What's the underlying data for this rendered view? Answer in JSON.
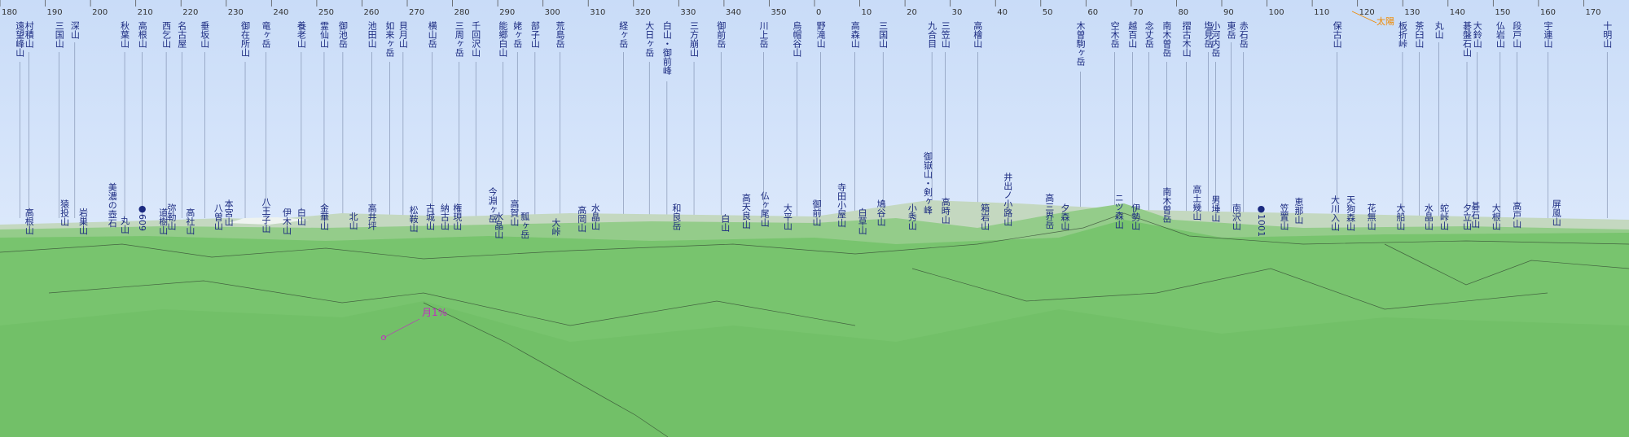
{
  "compass_ticks": [
    180,
    190,
    200,
    210,
    220,
    230,
    240,
    250,
    260,
    270,
    280,
    290,
    300,
    310,
    320,
    330,
    340,
    350,
    0,
    10,
    20,
    30,
    40,
    50,
    60,
    70,
    80,
    90,
    100,
    110,
    120,
    130,
    140,
    150,
    160,
    170
  ],
  "sun": "太陽",
  "moon": "月1%",
  "peaks": [
    {
      "name": "遠望峰山"
    },
    {
      "name": "村積山"
    },
    {
      "name": "三国山"
    },
    {
      "name": "深山"
    },
    {
      "name": "秋葉山"
    },
    {
      "name": "高根山"
    },
    {
      "name": "西乞山"
    },
    {
      "name": "名古屋"
    },
    {
      "name": "垂坂山"
    },
    {
      "name": "御在所山"
    },
    {
      "name": "竜ヶ岳"
    },
    {
      "name": "養老山"
    },
    {
      "name": "霊仙山"
    },
    {
      "name": "御池岳"
    },
    {
      "name": "池田山"
    },
    {
      "name": "如来ヶ岳"
    },
    {
      "name": "貝月山"
    },
    {
      "name": "横山岳"
    },
    {
      "name": "三周ヶ岳"
    },
    {
      "name": "千回沢山"
    },
    {
      "name": "能郷白山"
    },
    {
      "name": "姥ヶ岳"
    },
    {
      "name": "部子山"
    },
    {
      "name": "荒島岳"
    },
    {
      "name": "経ヶ岳"
    },
    {
      "name": "大日ヶ岳"
    },
    {
      "name": "白山・御前峰"
    },
    {
      "name": "三方崩山"
    },
    {
      "name": "御前岳"
    },
    {
      "name": "川上岳"
    },
    {
      "name": "烏帽谷山"
    },
    {
      "name": "野滝山"
    },
    {
      "name": "高森山"
    },
    {
      "name": "三国山"
    },
    {
      "name": "九合目"
    },
    {
      "name": "三笠山"
    },
    {
      "name": "高檜山"
    },
    {
      "name": "木曽駒ヶ岳"
    },
    {
      "name": "空木岳"
    },
    {
      "name": "越百山"
    },
    {
      "name": "念丈岳"
    },
    {
      "name": "南木曽岳"
    },
    {
      "name": "摺古木山"
    },
    {
      "name": "塩見岳"
    },
    {
      "name": "小河内岳"
    },
    {
      "name": "東岳"
    },
    {
      "name": "赤石岳"
    },
    {
      "name": "保古山"
    },
    {
      "name": "板折峠"
    },
    {
      "name": "茶臼山"
    },
    {
      "name": "丸山"
    },
    {
      "name": "碁盤石山"
    },
    {
      "name": "大鈴山"
    },
    {
      "name": "仏岩山"
    },
    {
      "name": "段戸山"
    },
    {
      "name": "宇連山"
    },
    {
      "name": "十明山"
    }
  ],
  "lower_peaks": [
    {
      "name": "高根山"
    },
    {
      "name": "猿投山"
    },
    {
      "name": "岩巣山"
    },
    {
      "name": "美濃の壺石"
    },
    {
      "name": "丸山"
    },
    {
      "name": "●609",
      "color": "#d0103a"
    },
    {
      "name": "道樹山"
    },
    {
      "name": "弥勒山"
    },
    {
      "name": "高社山"
    },
    {
      "name": "八曽山"
    },
    {
      "name": "本宮山"
    },
    {
      "name": "八王子山"
    },
    {
      "name": "伊木山"
    },
    {
      "name": "白山"
    },
    {
      "name": "金華山"
    },
    {
      "name": "北山"
    },
    {
      "name": "高井坪"
    },
    {
      "name": "松鞍山"
    },
    {
      "name": "古城山"
    },
    {
      "name": "納古山"
    },
    {
      "name": "権現山"
    },
    {
      "name": "今淵ヶ岳"
    },
    {
      "name": "水晶山"
    },
    {
      "name": "高賀山"
    },
    {
      "name": "瓢ヶ岳"
    },
    {
      "name": "大峠"
    },
    {
      "name": "高岡山"
    },
    {
      "name": "水晶山"
    },
    {
      "name": "和良岳"
    },
    {
      "name": "白山"
    },
    {
      "name": "高天良山"
    },
    {
      "name": "仏ヶ尾山"
    },
    {
      "name": "大平山"
    },
    {
      "name": "御前山"
    },
    {
      "name": "寺田小屋山"
    },
    {
      "name": "白草山"
    },
    {
      "name": "鳩谷山"
    },
    {
      "name": "小秀山"
    },
    {
      "name": "御嶽山・剣ヶ峰"
    },
    {
      "name": "高時山"
    },
    {
      "name": "箱岩山"
    },
    {
      "name": "井出ノ小路山"
    },
    {
      "name": "高三界岳"
    },
    {
      "name": "夕森山"
    },
    {
      "name": "ニツ森山"
    },
    {
      "name": "伊勢山"
    },
    {
      "name": "南木曽岳"
    },
    {
      "name": "高土幾山"
    },
    {
      "name": "男埵山"
    },
    {
      "name": "南沢山"
    },
    {
      "name": "●1001",
      "color": "#d0103a"
    },
    {
      "name": "笠置山"
    },
    {
      "name": "恵那山"
    },
    {
      "name": "大川入山"
    },
    {
      "name": "天狗森山"
    },
    {
      "name": "花無山"
    },
    {
      "name": "大船山"
    },
    {
      "name": "水晶山"
    },
    {
      "name": "蛇峠山"
    },
    {
      "name": "夕立山"
    },
    {
      "name": "碁石山"
    },
    {
      "name": "大根山"
    },
    {
      "name": "高戸山"
    },
    {
      "name": "屏風山"
    }
  ]
}
